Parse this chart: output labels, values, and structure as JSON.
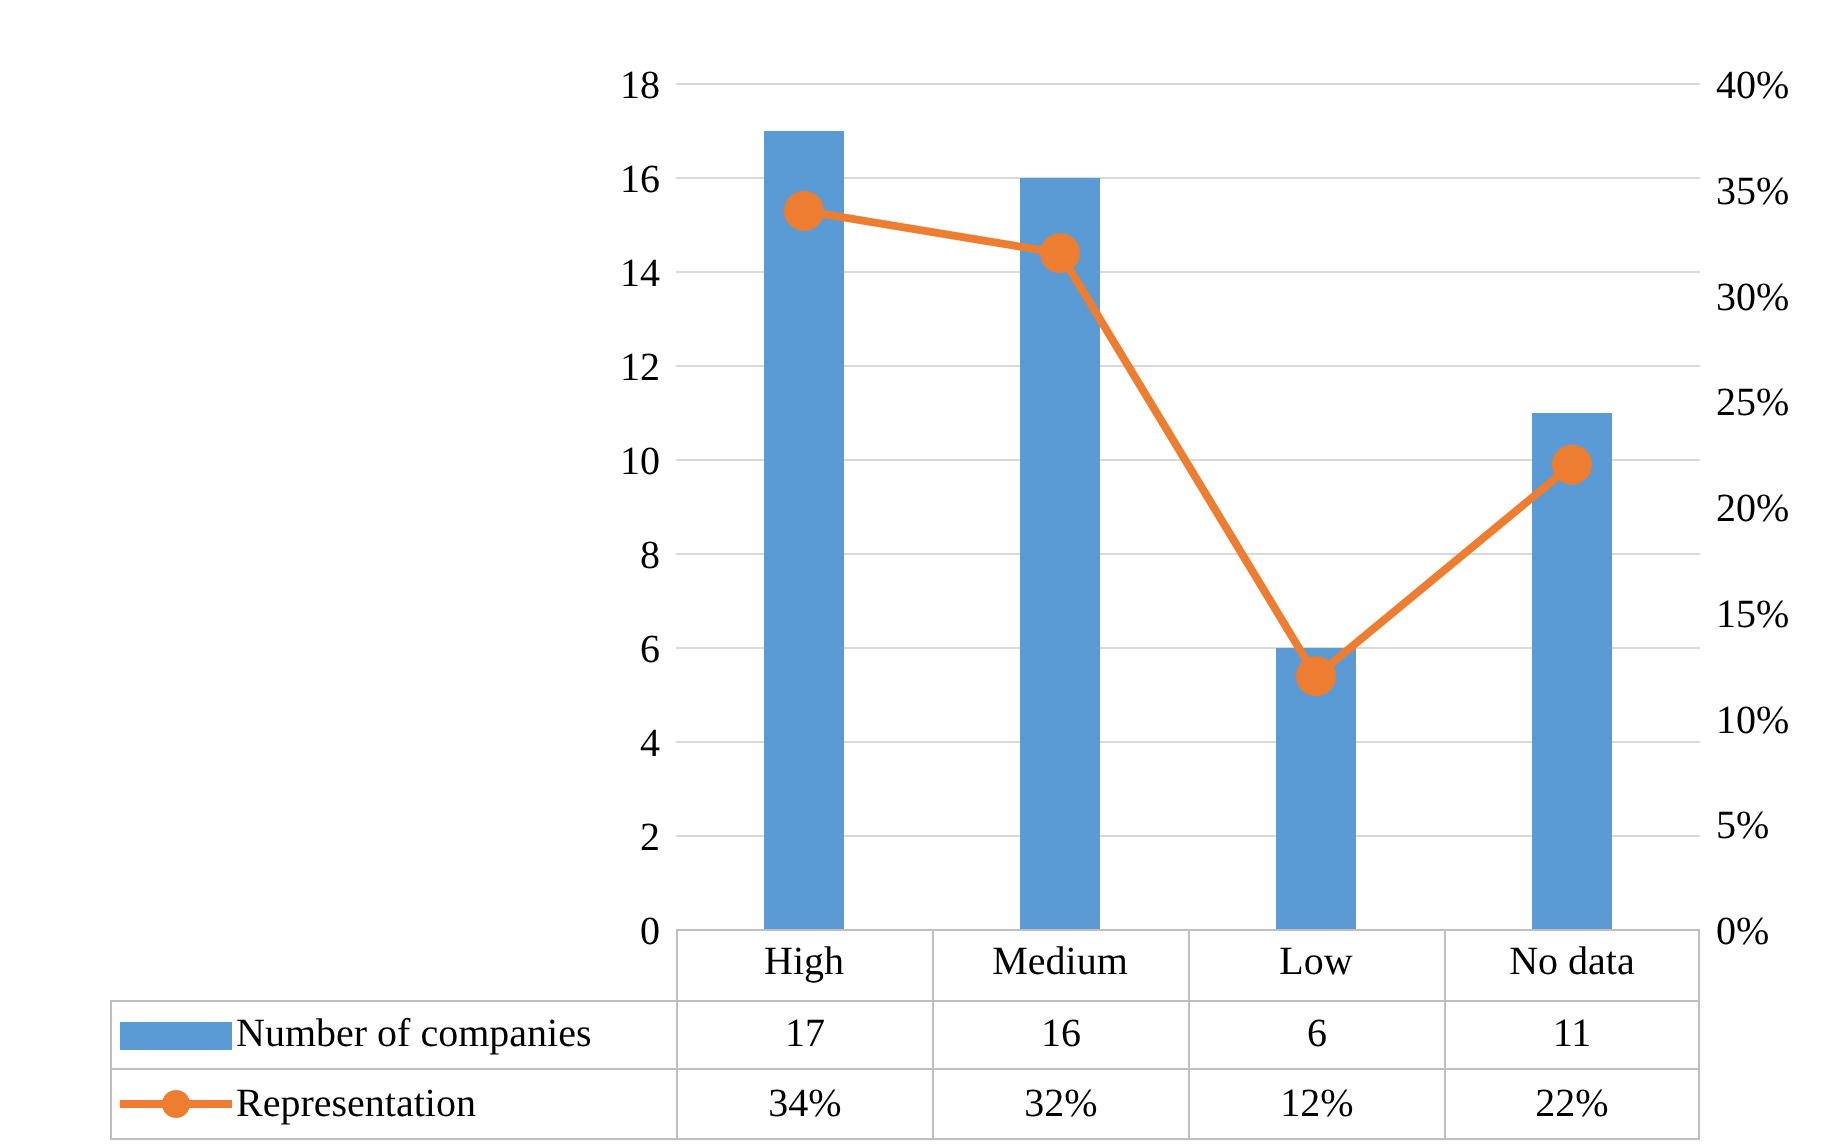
{
  "chart_data": {
    "type": "bar",
    "categories": [
      "High",
      "Medium",
      "Low",
      "No data"
    ],
    "series": [
      {
        "name": "Number of companies",
        "color": "#5b9bd5",
        "values": [
          17,
          16,
          6,
          11
        ],
        "value_labels": [
          "17",
          "16",
          "6",
          "11"
        ]
      },
      {
        "name": "Representation",
        "type": "line",
        "axis": "y2",
        "color": "#ed7d31",
        "values": [
          34,
          32,
          12,
          22
        ],
        "value_labels": [
          "34%",
          "32%",
          "12%",
          "22%"
        ],
        "marker": "circle"
      }
    ],
    "ylim": [
      0,
      18
    ],
    "yticks": [
      0,
      2,
      4,
      6,
      8,
      10,
      12,
      14,
      16,
      18
    ],
    "y2lim": [
      0,
      40
    ],
    "y2ticks": [
      {
        "value": 0,
        "label": "0%"
      },
      {
        "value": 5,
        "label": "5%"
      },
      {
        "value": 10,
        "label": "10%"
      },
      {
        "value": 15,
        "label": "15%"
      },
      {
        "value": 20,
        "label": "20%"
      },
      {
        "value": 25,
        "label": "25%"
      },
      {
        "value": 30,
        "label": "30%"
      },
      {
        "value": 35,
        "label": "35%"
      },
      {
        "value": 40,
        "label": "40%"
      }
    ],
    "grid": "y",
    "legend": "bottom"
  }
}
